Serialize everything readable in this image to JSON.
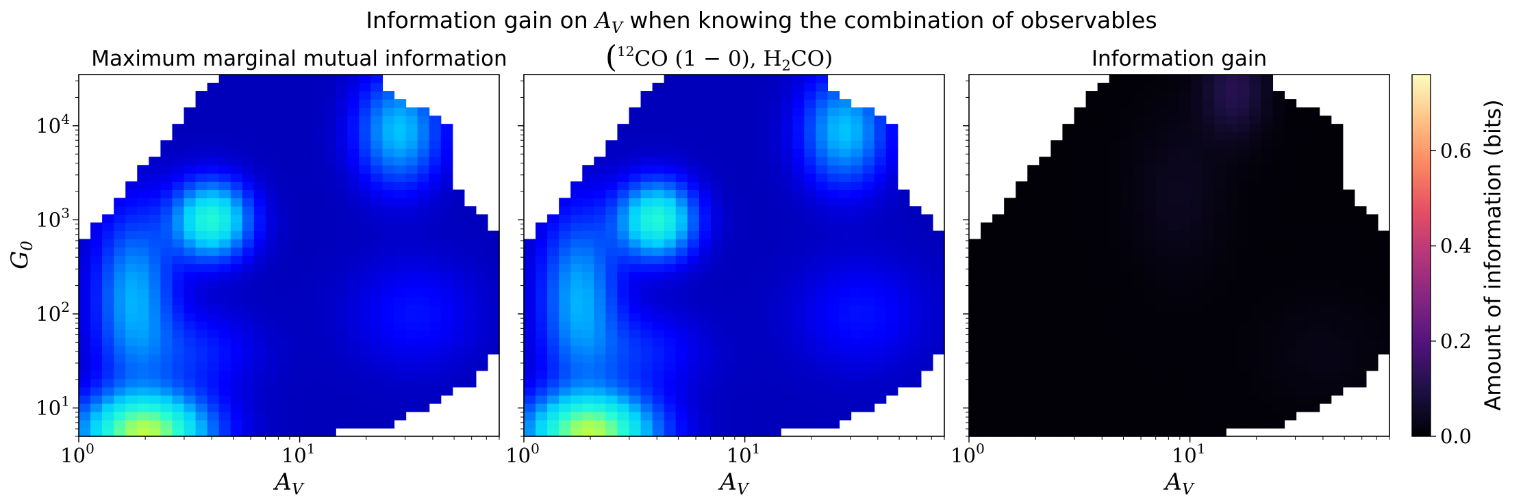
{
  "figure": {
    "suptitle_prefix": "Information gain on ",
    "suptitle_sym": "A",
    "suptitle_sub": "V",
    "suptitle_suffix": " when knowing the combination of observables"
  },
  "chart_data": [
    {
      "type": "heatmap",
      "title": "Maximum marginal mutual information",
      "xlabel": "A_V",
      "ylabel": "G_0",
      "xscale": "log",
      "yscale": "log",
      "xlim": [
        1,
        80
      ],
      "ylim": [
        5,
        35000
      ],
      "xticks": [
        "10^0",
        "10^1"
      ],
      "yticks": [
        "10^1",
        "10^2",
        "10^3",
        "10^4"
      ],
      "colormap": "jet",
      "value_range": [
        0,
        0.8
      ],
      "notes": "Values peak (~0.5) near A_V≈2, G0≈5–10 and (~0.4) near A_V≈4, G0≈1000; most of the domain is low (~0.05–0.15) with a secondary high region (~0.3) at A_V 25–40, G0 3000–20000."
    },
    {
      "type": "heatmap",
      "title_open": "(",
      "title_sup": "12",
      "title_main": "CO (1 − 0), H",
      "title_sub": "2",
      "title_end": "CO)",
      "xlabel": "A_V",
      "xscale": "log",
      "yscale": "log",
      "xlim": [
        1,
        80
      ],
      "ylim": [
        5,
        35000
      ],
      "xticks": [
        "10^0",
        "10^1"
      ],
      "colormap": "jet",
      "value_range": [
        0,
        0.8
      ]
    },
    {
      "type": "heatmap",
      "title": "Information gain",
      "xlabel": "A_V",
      "xscale": "log",
      "yscale": "log",
      "xlim": [
        1,
        80
      ],
      "ylim": [
        5,
        35000
      ],
      "xticks": [
        "10^0",
        "10^1"
      ],
      "colormap": "magma",
      "value_range": [
        0,
        0.76
      ],
      "notes": "Near zero almost everywhere; slight gain (~0.05–0.1) at A_V≈10–20, G0 ≥ 10^3."
    }
  ],
  "colorbar": {
    "label": "Amount of information (bits)",
    "ticks": [
      "0.0",
      "0.2",
      "0.4",
      "0.6"
    ],
    "tick_values": [
      0.0,
      0.2,
      0.4,
      0.6
    ],
    "range": [
      0,
      0.76
    ],
    "colormap": "magma"
  }
}
